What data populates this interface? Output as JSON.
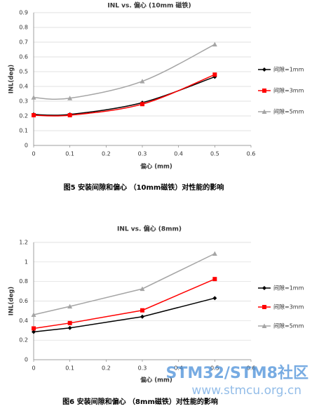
{
  "chart_data": [
    {
      "type": "line",
      "title": "INL vs. 偏心 (10mm 磁铁)",
      "y_label": "INL(deg)",
      "x_label": "偏心 (mm)",
      "x": [
        0,
        0.1,
        0.3,
        0.5
      ],
      "xlim": [
        0,
        0.6
      ],
      "xticks": [
        0,
        0.1,
        0.2,
        0.3,
        0.4,
        0.5,
        0.6
      ],
      "ylim": [
        0,
        0.9
      ],
      "yticks": [
        0,
        0.1,
        0.2,
        0.3,
        0.4,
        0.5,
        0.6,
        0.7,
        0.8,
        0.9
      ],
      "grid": true,
      "smooth": true,
      "legend": "right",
      "series": [
        {
          "name": "间隙=1mm",
          "color": "#000000",
          "marker": "diamond",
          "values": [
            0.21,
            0.21,
            0.29,
            0.465
          ]
        },
        {
          "name": "间隙=3mm",
          "color": "#ff0000",
          "marker": "square",
          "values": [
            0.205,
            0.205,
            0.28,
            0.48
          ]
        },
        {
          "name": "间隙=5mm",
          "color": "#a5a5a5",
          "marker": "triangle",
          "values": [
            0.325,
            0.32,
            0.435,
            0.685
          ]
        }
      ]
    },
    {
      "type": "line",
      "title": "INL vs. 偏心 (8mm)",
      "y_label": "INL(deg)",
      "x_label": "偏心 (mm)",
      "x": [
        0,
        0.1,
        0.3,
        0.5
      ],
      "xlim": [
        0,
        0.6
      ],
      "xticks": [
        0,
        0.1,
        0.2,
        0.3,
        0.4,
        0.5,
        0.6
      ],
      "ylim": [
        0,
        1.2
      ],
      "yticks": [
        0,
        0.2,
        0.4,
        0.6,
        0.8,
        1,
        1.2
      ],
      "grid": true,
      "smooth": false,
      "legend": "right",
      "series": [
        {
          "name": "间隙=1mm",
          "color": "#000000",
          "marker": "diamond",
          "values": [
            0.285,
            0.325,
            0.44,
            0.63
          ]
        },
        {
          "name": "间隙=3mm",
          "color": "#ff0000",
          "marker": "square",
          "values": [
            0.32,
            0.375,
            0.505,
            0.825
          ]
        },
        {
          "name": "间隙=5mm",
          "color": "#a5a5a5",
          "marker": "triangle",
          "values": [
            0.46,
            0.545,
            0.725,
            1.085
          ]
        }
      ]
    }
  ],
  "captions": [
    "图5  安装间隙和偏心 （10mm磁铁）对性能的影响",
    "图6  安装间隙和偏心 （8mm磁铁）对性能的影响"
  ],
  "watermark": {
    "title": "STM32/STM8社区",
    "url": "www.stmcu.org.cn"
  }
}
